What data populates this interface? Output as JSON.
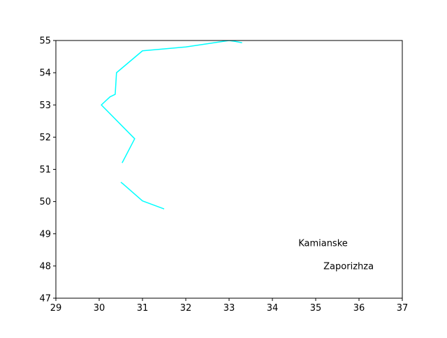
{
  "chart_data": {
    "type": "line",
    "title": "",
    "xlabel": "",
    "ylabel": "",
    "xlim": [
      29,
      37
    ],
    "ylim": [
      47,
      55
    ],
    "xticks": [
      "29",
      "30",
      "31",
      "32",
      "33",
      "34",
      "35",
      "36",
      "37"
    ],
    "yticks": [
      "47",
      "48",
      "49",
      "50",
      "51",
      "52",
      "53",
      "54",
      "55"
    ],
    "grid": false,
    "legend": "none",
    "series": [
      {
        "color": "#00ffff",
        "segments": [
          [
            [
              33.3,
              54.93
            ],
            [
              33.15,
              54.97
            ],
            [
              33.0,
              55.0
            ],
            [
              32.0,
              54.8
            ],
            [
              31.0,
              54.68
            ],
            [
              30.4,
              54.0
            ],
            [
              30.37,
              53.33
            ],
            [
              30.25,
              53.25
            ],
            [
              30.05,
              53.0
            ],
            [
              30.82,
              51.95
            ],
            [
              30.53,
              51.2
            ]
          ],
          [
            [
              30.5,
              50.6
            ],
            [
              30.55,
              50.55
            ],
            [
              31.0,
              50.02
            ],
            [
              31.5,
              49.77
            ]
          ]
        ]
      }
    ],
    "annotations": [
      {
        "text": "Kamianske",
        "x": 34.6,
        "y": 48.62
      },
      {
        "text": "Zaporizhza",
        "x": 35.18,
        "y": 47.9
      }
    ]
  }
}
